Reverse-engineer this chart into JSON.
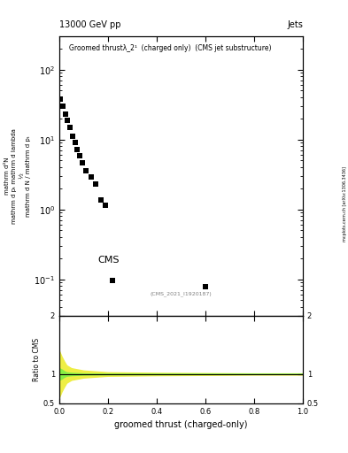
{
  "title_top": "13000 GeV pp",
  "title_right": "Jets",
  "plot_title": "Groomed thrustλ_2¹  (charged only)  (CMS jet substructure)",
  "cms_label": "CMS",
  "inspire_label": "(CMS_2021_I1920187)",
  "right_label": "mcplots.cern.ch [arXiv:1306.3436]",
  "xlabel": "groomed thrust (charged-only)",
  "ylabel_main_lines": [
    "mathrm d²N",
    "mathrm d pₜ mathrm d lambda",
    "½",
    "mathrm d N / mathrm d pₜ"
  ],
  "ylim_main": [
    0.03,
    300
  ],
  "xlim": [
    0,
    1
  ],
  "ylim_ratio": [
    0.5,
    2.0
  ],
  "data_x": [
    0.005,
    0.015,
    0.025,
    0.035,
    0.045,
    0.055,
    0.065,
    0.075,
    0.085,
    0.095,
    0.11,
    0.13,
    0.15,
    0.17,
    0.19,
    0.22,
    0.6
  ],
  "data_y": [
    38,
    30,
    23,
    19,
    15,
    11,
    9.0,
    7.2,
    5.8,
    4.7,
    3.6,
    2.9,
    2.3,
    1.35,
    1.15,
    0.097,
    0.078
  ],
  "ratio_band_x": [
    0.0,
    0.01,
    0.02,
    0.03,
    0.05,
    0.1,
    0.2,
    0.4,
    0.6,
    0.8,
    1.0
  ],
  "ratio_band_green_lo": [
    0.9,
    0.92,
    0.95,
    0.97,
    0.98,
    0.99,
    0.995,
    0.997,
    0.998,
    0.999,
    0.999
  ],
  "ratio_band_green_hi": [
    1.1,
    1.08,
    1.05,
    1.03,
    1.02,
    1.01,
    1.005,
    1.003,
    1.002,
    1.001,
    1.001
  ],
  "ratio_band_yellow_lo": [
    0.6,
    0.7,
    0.78,
    0.85,
    0.9,
    0.94,
    0.97,
    0.98,
    0.985,
    0.99,
    0.99
  ],
  "ratio_band_yellow_hi": [
    1.4,
    1.3,
    1.22,
    1.15,
    1.1,
    1.06,
    1.03,
    1.02,
    1.015,
    1.01,
    1.01
  ],
  "marker_color": "black",
  "marker_size": 5,
  "green_color": "#88ee44",
  "yellow_color": "#eeee44",
  "ratio_line_color": "black",
  "bg_color": "white"
}
